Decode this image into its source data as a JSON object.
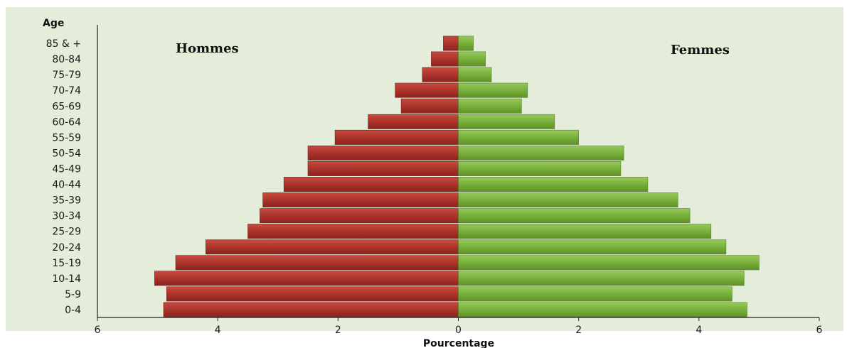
{
  "chart_data": {
    "type": "bar",
    "orientation": "horizontal",
    "title": "",
    "ylabel": "Age",
    "xlabel": "Pourcentage",
    "categories": [
      "0-4",
      "5-9",
      "10-14",
      "15-19",
      "20-24",
      "25-29",
      "30-34",
      "35-39",
      "40-44",
      "45-49",
      "50-54",
      "55-59",
      "60-64",
      "65-69",
      "70-74",
      "75-79",
      "80-84",
      "85 & +"
    ],
    "series": [
      {
        "name": "Hommes",
        "side": "left",
        "color": "#b23a30",
        "values": [
          4.9,
          4.85,
          5.05,
          4.7,
          4.2,
          3.5,
          3.3,
          3.25,
          2.9,
          2.5,
          2.5,
          2.05,
          1.5,
          0.95,
          1.05,
          0.6,
          0.45,
          0.25
        ]
      },
      {
        "name": "Femmes",
        "side": "right",
        "color": "#7cb33c",
        "values": [
          4.8,
          4.55,
          4.75,
          5.0,
          4.45,
          4.2,
          3.85,
          3.65,
          3.15,
          2.7,
          2.75,
          2.0,
          1.6,
          1.05,
          1.15,
          0.55,
          0.45,
          0.25
        ]
      }
    ],
    "xlim": [
      -6,
      6
    ],
    "x_ticks": [
      -6,
      -4,
      -2,
      0,
      2,
      4,
      6
    ],
    "x_tick_labels": [
      "6",
      "4",
      "2",
      "0",
      "2",
      "4",
      "6"
    ],
    "background_color": "#e3edd9",
    "grid": false
  }
}
